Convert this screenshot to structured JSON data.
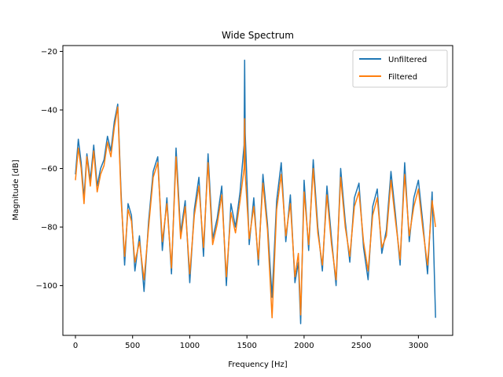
{
  "chart_data": {
    "type": "line",
    "title": "Wide Spectrum",
    "xlabel": "Frequency [Hz]",
    "ylabel": "Magnitude [dB]",
    "xlim": [
      -110,
      3300
    ],
    "ylim": [
      -117,
      -18
    ],
    "xticks": [
      0,
      500,
      1000,
      1500,
      2000,
      2500,
      3000
    ],
    "yticks": [
      -20,
      -40,
      -60,
      -80,
      -100
    ],
    "grid": false,
    "legend_position": "top-right",
    "series": [
      {
        "name": "Unfiltered",
        "color": "#1f77b4",
        "x": [
          0,
          25,
          50,
          75,
          100,
          130,
          160,
          190,
          220,
          250,
          280,
          310,
          340,
          370,
          400,
          430,
          460,
          490,
          520,
          560,
          600,
          640,
          680,
          720,
          760,
          800,
          840,
          880,
          920,
          960,
          1000,
          1040,
          1080,
          1120,
          1160,
          1200,
          1240,
          1280,
          1320,
          1360,
          1400,
          1440,
          1475,
          1480,
          1485,
          1520,
          1560,
          1600,
          1640,
          1680,
          1720,
          1760,
          1800,
          1840,
          1880,
          1920,
          1950,
          1970,
          2000,
          2040,
          2080,
          2120,
          2160,
          2200,
          2240,
          2280,
          2320,
          2360,
          2400,
          2440,
          2480,
          2520,
          2560,
          2600,
          2640,
          2680,
          2720,
          2760,
          2800,
          2840,
          2880,
          2920,
          2960,
          3000,
          3040,
          3080,
          3120,
          3150
        ],
        "y": [
          -62,
          -50,
          -58,
          -70,
          -55,
          -64,
          -52,
          -66,
          -60,
          -57,
          -49,
          -54,
          -44,
          -38,
          -69,
          -93,
          -72,
          -76,
          -95,
          -83,
          -102,
          -78,
          -61,
          -56,
          -88,
          -70,
          -96,
          -53,
          -82,
          -71,
          -99,
          -74,
          -63,
          -90,
          -55,
          -84,
          -77,
          -66,
          -100,
          -72,
          -80,
          -68,
          -52,
          -23,
          -48,
          -86,
          -70,
          -93,
          -62,
          -79,
          -104,
          -71,
          -58,
          -85,
          -69,
          -99,
          -92,
          -113,
          -64,
          -88,
          -57,
          -80,
          -95,
          -66,
          -84,
          -100,
          -60,
          -78,
          -92,
          -70,
          -65,
          -87,
          -98,
          -73,
          -67,
          -89,
          -81,
          -61,
          -76,
          -93,
          -58,
          -85,
          -70,
          -64,
          -79,
          -96,
          -68,
          -111
        ]
      },
      {
        "name": "Filtered",
        "color": "#ff7f0e",
        "x": [
          0,
          25,
          50,
          75,
          100,
          130,
          160,
          190,
          220,
          250,
          280,
          310,
          340,
          370,
          400,
          430,
          460,
          490,
          520,
          560,
          600,
          640,
          680,
          720,
          760,
          800,
          840,
          880,
          920,
          960,
          1000,
          1040,
          1080,
          1120,
          1160,
          1200,
          1240,
          1280,
          1320,
          1360,
          1400,
          1440,
          1475,
          1480,
          1485,
          1520,
          1560,
          1600,
          1640,
          1680,
          1720,
          1760,
          1800,
          1840,
          1880,
          1920,
          1950,
          1970,
          2000,
          2040,
          2080,
          2120,
          2160,
          2200,
          2240,
          2280,
          2320,
          2360,
          2400,
          2440,
          2480,
          2520,
          2560,
          2600,
          2640,
          2680,
          2720,
          2760,
          2800,
          2840,
          2880,
          2920,
          2960,
          3000,
          3040,
          3080,
          3120,
          3150
        ],
        "y": [
          -64,
          -53,
          -60,
          -72,
          -56,
          -66,
          -54,
          -68,
          -62,
          -59,
          -51,
          -56,
          -46,
          -39,
          -71,
          -90,
          -74,
          -78,
          -92,
          -85,
          -98,
          -80,
          -63,
          -58,
          -85,
          -72,
          -94,
          -56,
          -84,
          -73,
          -96,
          -76,
          -66,
          -87,
          -58,
          -86,
          -79,
          -69,
          -97,
          -75,
          -82,
          -71,
          -60,
          -43,
          -62,
          -84,
          -73,
          -91,
          -65,
          -81,
          -111,
          -74,
          -62,
          -83,
          -72,
          -97,
          -89,
          -110,
          -68,
          -86,
          -60,
          -82,
          -93,
          -69,
          -86,
          -98,
          -63,
          -80,
          -90,
          -73,
          -68,
          -85,
          -95,
          -76,
          -70,
          -87,
          -83,
          -64,
          -78,
          -91,
          -62,
          -83,
          -73,
          -67,
          -81,
          -93,
          -71,
          -80
        ]
      }
    ]
  }
}
